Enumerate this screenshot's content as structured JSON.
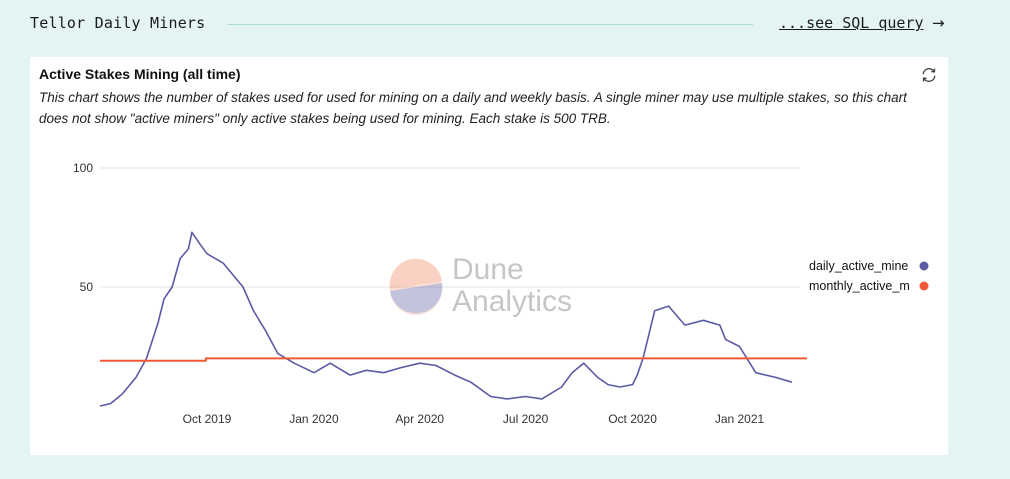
{
  "header": {
    "title": "Tellor Daily Miners",
    "link_label": "...see SQL query",
    "link_arrow": "→"
  },
  "card": {
    "title": "Active Stakes Mining (all time)",
    "description": "This chart shows the number of stakes used for used for mining on a daily and weekly basis. A single miner may use multiple stakes, so this chart does not show \"active miners\" only active stakes being used for mining. Each stake is 500 TRB.",
    "refresh_icon": "refresh-icon"
  },
  "watermark": {
    "line1": "Dune",
    "line2": "Analytics"
  },
  "colors": {
    "daily": "#5b5aa4",
    "monthly": "#ee5a36",
    "grid": "#e6e6e6",
    "page_bg": "#e3f4f2"
  },
  "chart_data": {
    "type": "line",
    "title": "Active Stakes Mining (all time)",
    "xlabel": "",
    "ylabel": "",
    "ylim": [
      0,
      108
    ],
    "x_ticks": [
      "Oct 2019",
      "Jan 2020",
      "Apr 2020",
      "Jul 2020",
      "Oct 2020",
      "Jan 2021"
    ],
    "y_ticks": [
      50,
      100
    ],
    "legend": {
      "placement": "right"
    },
    "series": [
      {
        "name": "daily_active_miners",
        "legend_label": "daily_active_mine",
        "color": "#5b5aa4",
        "x": [
          "2019-07-01",
          "2019-07-10",
          "2019-07-20",
          "2019-08-01",
          "2019-08-10",
          "2019-08-20",
          "2019-08-25",
          "2019-09-01",
          "2019-09-08",
          "2019-09-15",
          "2019-09-18",
          "2019-09-25",
          "2019-10-01",
          "2019-10-15",
          "2019-11-01",
          "2019-11-10",
          "2019-11-20",
          "2019-12-01",
          "2019-12-15",
          "2020-01-01",
          "2020-01-15",
          "2020-02-01",
          "2020-02-15",
          "2020-03-01",
          "2020-03-15",
          "2020-04-01",
          "2020-04-15",
          "2020-05-01",
          "2020-05-15",
          "2020-06-01",
          "2020-06-15",
          "2020-07-01",
          "2020-07-15",
          "2020-08-01",
          "2020-08-10",
          "2020-08-20",
          "2020-09-01",
          "2020-09-10",
          "2020-09-20",
          "2020-10-01",
          "2020-10-05",
          "2020-10-10",
          "2020-10-20",
          "2020-11-01",
          "2020-11-15",
          "2020-12-01",
          "2020-12-15",
          "2020-12-20",
          "2021-01-01",
          "2021-01-15",
          "2021-02-01",
          "2021-02-15"
        ],
        "y": [
          0,
          1,
          5,
          12,
          20,
          35,
          45,
          50,
          62,
          66,
          73,
          68,
          64,
          60,
          50,
          40,
          32,
          22,
          18,
          14,
          18,
          13,
          15,
          14,
          16,
          18,
          17,
          13,
          10,
          4,
          3,
          4,
          3,
          8,
          14,
          18,
          12,
          9,
          8,
          9,
          13,
          20,
          40,
          42,
          34,
          36,
          34,
          28,
          25,
          14,
          12,
          10
        ]
      },
      {
        "name": "monthly_active_miners",
        "legend_label": "monthly_active_m",
        "color": "#ee5a36",
        "x": [
          "2019-07-01",
          "2019-08-01",
          "2019-08-31",
          "2019-09-30",
          "2019-10-31",
          "2019-11-30",
          "2019-12-31",
          "2020-01-31",
          "2020-02-29",
          "2020-03-31",
          "2020-04-30",
          "2020-05-31",
          "2020-06-30",
          "2020-07-31",
          "2020-08-31",
          "2020-09-30",
          "2020-10-31",
          "2020-11-30",
          "2020-12-31",
          "2021-01-31",
          "2021-02-28"
        ],
        "y": [
          19,
          19,
          19,
          20,
          20,
          20,
          20,
          20,
          20,
          20,
          20,
          20,
          20,
          20,
          20,
          20,
          20,
          20,
          20,
          20,
          20
        ]
      }
    ]
  }
}
